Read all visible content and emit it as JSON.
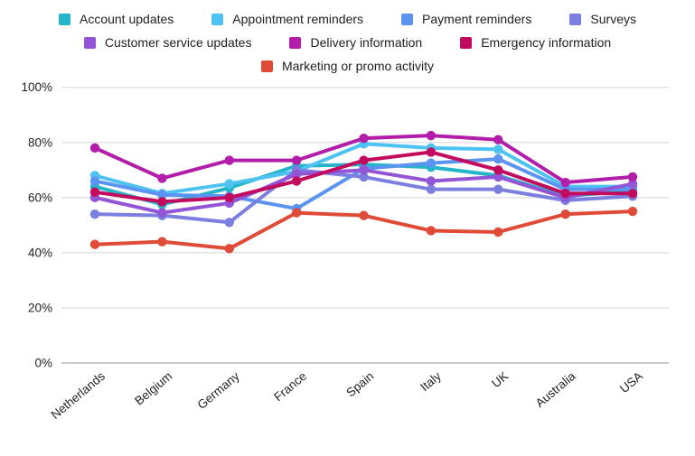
{
  "chart_data": {
    "type": "line",
    "title": "",
    "xlabel": "",
    "ylabel": "",
    "ylim": [
      0,
      100
    ],
    "grid": "horizontal",
    "legend_position": "top",
    "ytick_values": [
      0,
      20,
      40,
      60,
      80,
      100
    ],
    "ytick_labels": [
      "0%",
      "20%",
      "40%",
      "60%",
      "80%",
      "100%"
    ],
    "categories": [
      "Netherlands",
      "Belgium",
      "Germany",
      "France",
      "Spain",
      "Italy",
      "UK",
      "Australia",
      "USA"
    ],
    "series": [
      {
        "name": "Account updates",
        "color": "#24b6c8",
        "values": [
          64,
          57.5,
          63.5,
          71.5,
          72,
          71,
          68,
          60.5,
          62.5
        ]
      },
      {
        "name": "Appointment reminders",
        "color": "#4dc3f2",
        "values": [
          68,
          61.5,
          65,
          69.5,
          79.5,
          78,
          77.5,
          64,
          64
        ]
      },
      {
        "name": "Payment reminders",
        "color": "#5b94f0",
        "values": [
          66,
          61,
          60.5,
          56,
          70.5,
          72.5,
          74,
          63,
          63
        ]
      },
      {
        "name": "Surveys",
        "color": "#7b80e0",
        "values": [
          54,
          53.5,
          51,
          70,
          67.5,
          63,
          63,
          59,
          60.5
        ]
      },
      {
        "name": "Customer service updates",
        "color": "#9355d6",
        "values": [
          60,
          54.5,
          58,
          68.5,
          70,
          66,
          67.5,
          60,
          65
        ]
      },
      {
        "name": "Delivery information",
        "color": "#b21da9",
        "values": [
          78,
          67,
          73.5,
          73.5,
          81.5,
          82.5,
          81,
          65.5,
          67.5
        ]
      },
      {
        "name": "Emergency information",
        "color": "#c20b5e",
        "values": [
          62,
          58.5,
          60,
          66,
          73.5,
          76.5,
          70,
          61.5,
          61.5
        ]
      },
      {
        "name": "Marketing or promo activity",
        "color": "#e04b38",
        "values": [
          43,
          44,
          41.5,
          54.5,
          53.5,
          48,
          47.5,
          54,
          55
        ]
      }
    ],
    "colors": {
      "gridline": "#e3e3e3",
      "baseline": "#c9c9c9",
      "tick_text": "#1f1f1f"
    }
  }
}
